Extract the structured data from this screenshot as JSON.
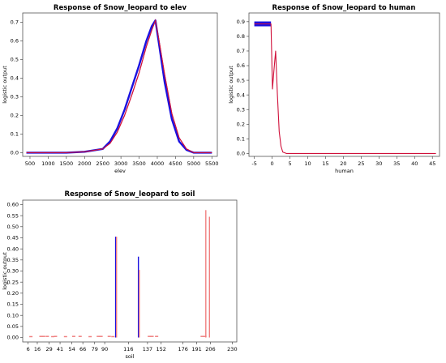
{
  "chart_data": [
    {
      "type": "line",
      "title": "Response of Snow_leopard to elev",
      "xlabel": "elev",
      "ylabel": "logistic output",
      "xlim": [
        300,
        5650
      ],
      "ylim": [
        -0.02,
        0.75
      ],
      "xticks": [
        500,
        1000,
        1500,
        2000,
        2500,
        3000,
        3500,
        4000,
        4500,
        5000,
        5500
      ],
      "yticks": [
        0.0,
        0.1,
        0.2,
        0.3,
        0.4,
        0.5,
        0.6,
        0.7
      ],
      "ytick_labels": [
        "0.0",
        "0.1",
        "0.2",
        "0.3",
        "0.4",
        "0.5",
        "0.6",
        "0.7"
      ],
      "series": [
        {
          "color": "#d0103a",
          "x": [
            400,
            1500,
            2000,
            2500,
            2700,
            2900,
            3100,
            3300,
            3500,
            3700,
            3850,
            3950,
            4050,
            4200,
            4400,
            4600,
            4800,
            5000,
            5500
          ],
          "y": [
            0.0,
            0.0,
            0.005,
            0.02,
            0.05,
            0.11,
            0.2,
            0.31,
            0.43,
            0.57,
            0.66,
            0.71,
            0.6,
            0.42,
            0.21,
            0.08,
            0.02,
            0.0,
            0.0
          ]
        },
        {
          "color": "#1a10e0",
          "x": [
            400,
            1500,
            2000,
            2500,
            2700,
            2900,
            3100,
            3300,
            3500,
            3700,
            3850,
            3950,
            4050,
            4200,
            4400,
            4600,
            4800,
            5000,
            5500
          ],
          "y": [
            0.0,
            0.0,
            0.005,
            0.02,
            0.06,
            0.13,
            0.23,
            0.35,
            0.47,
            0.6,
            0.68,
            0.71,
            0.58,
            0.38,
            0.18,
            0.06,
            0.015,
            0.0,
            0.0
          ]
        }
      ]
    },
    {
      "type": "line",
      "title": "Response of Snow_leopard to human",
      "xlabel": "human",
      "ylabel": "logistic output",
      "xlim": [
        -6.5,
        47
      ],
      "ylim": [
        -0.02,
        0.96
      ],
      "xticks": [
        -5,
        0,
        5,
        10,
        15,
        20,
        25,
        30,
        35,
        40,
        45
      ],
      "yticks": [
        0.0,
        0.1,
        0.2,
        0.3,
        0.4,
        0.5,
        0.6,
        0.7,
        0.8,
        0.9
      ],
      "ytick_labels": [
        "0.0",
        "0.1",
        "0.2",
        "0.3",
        "0.4",
        "0.5",
        "0.6",
        "0.7",
        "0.8",
        "0.9"
      ],
      "series": [
        {
          "color": "#1a10e0",
          "x": [
            -5,
            -0.3
          ],
          "y": [
            0.885,
            0.885
          ]
        },
        {
          "color": "#d0103a",
          "x": [
            -5,
            -0.3,
            0.1,
            0.5,
            1.0,
            1.5,
            2.0,
            2.5,
            3.0,
            4.0,
            5.0,
            46
          ],
          "y": [
            0.885,
            0.885,
            0.44,
            0.56,
            0.7,
            0.4,
            0.15,
            0.05,
            0.01,
            0.0,
            0.0,
            0.0
          ]
        }
      ]
    },
    {
      "type": "bar",
      "title": "Response of Snow_leopard to soil",
      "xlabel": "soil",
      "ylabel": "logistic output",
      "xlim": [
        0,
        235
      ],
      "ylim": [
        -0.02,
        0.62
      ],
      "xticks": [
        6,
        16,
        29,
        41,
        54,
        66,
        79,
        90,
        116,
        137,
        152,
        176,
        191,
        206,
        230
      ],
      "xtick_labels": [
        "6",
        "16",
        "29",
        "41",
        "54",
        "66",
        "79",
        "90",
        "116",
        "137",
        "152",
        "176",
        "191",
        "206",
        "230"
      ],
      "yticks": [
        0.0,
        0.05,
        0.1,
        0.15,
        0.2,
        0.25,
        0.3,
        0.35,
        0.4,
        0.45,
        0.5,
        0.55,
        0.6
      ],
      "ytick_labels": [
        "0.00",
        "0.05",
        "0.10",
        "0.15",
        "0.20",
        "0.25",
        "0.30",
        "0.35",
        "0.40",
        "0.45",
        "0.50",
        "0.55",
        "0.60"
      ],
      "bars": [
        {
          "x": 102,
          "value": 0.455,
          "color": "#1a10e0"
        },
        {
          "x": 103,
          "value": 0.455,
          "color": "#f08080"
        },
        {
          "x": 127,
          "value": 0.365,
          "color": "#1a10e0"
        },
        {
          "x": 128,
          "value": 0.305,
          "color": "#f08080"
        },
        {
          "x": 201,
          "value": 0.575,
          "color": "#f08080"
        },
        {
          "x": 205,
          "value": 0.545,
          "color": "#f08080"
        }
      ],
      "small_values": [
        {
          "x": 9,
          "value": 0.003
        },
        {
          "x": 20,
          "value": 0.004
        },
        {
          "x": 23,
          "value": 0.004
        },
        {
          "x": 27,
          "value": 0.004
        },
        {
          "x": 33,
          "value": 0.003
        },
        {
          "x": 36,
          "value": 0.004
        },
        {
          "x": 47,
          "value": 0.003
        },
        {
          "x": 56,
          "value": 0.004
        },
        {
          "x": 63,
          "value": 0.004
        },
        {
          "x": 74,
          "value": 0.003
        },
        {
          "x": 83,
          "value": 0.004
        },
        {
          "x": 86,
          "value": 0.004
        },
        {
          "x": 95,
          "value": 0.004
        },
        {
          "x": 99,
          "value": 0.003
        },
        {
          "x": 139,
          "value": 0.004
        },
        {
          "x": 142,
          "value": 0.004
        },
        {
          "x": 147,
          "value": 0.004
        },
        {
          "x": 197,
          "value": 0.004
        },
        {
          "x": 200,
          "value": 0.004
        }
      ]
    }
  ]
}
